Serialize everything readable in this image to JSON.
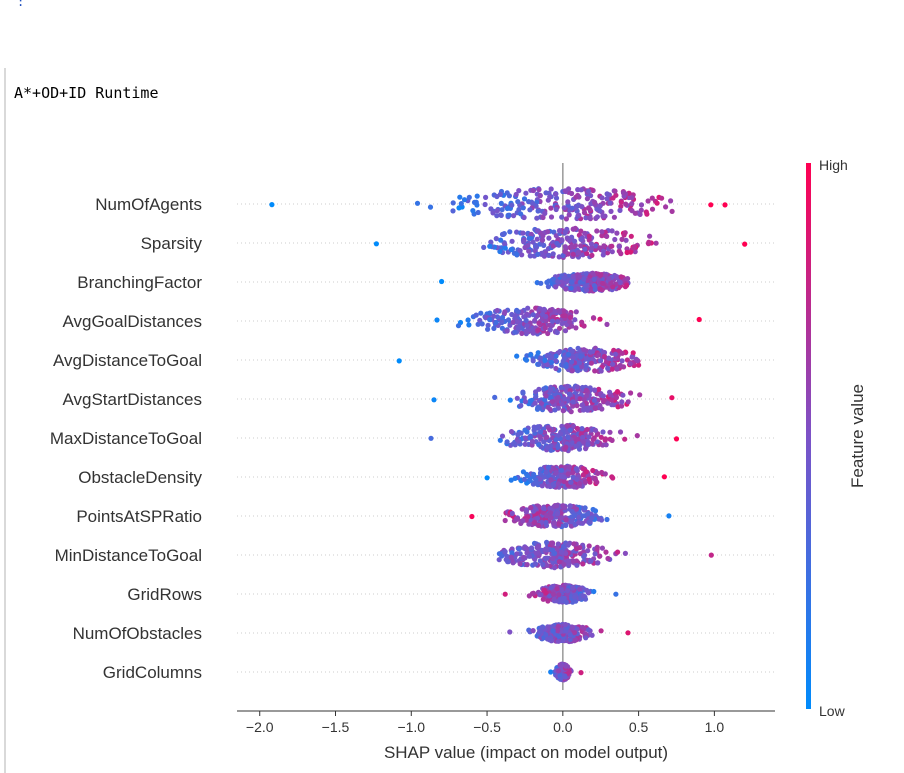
{
  "page": {
    "cell_marker": ":",
    "output_title": "A*+OD+ID Runtime"
  },
  "chart_data": {
    "type": "scatter",
    "subtype": "shap-beeswarm",
    "title": "",
    "xlabel": "SHAP value (impact on model output)",
    "ylabel": "",
    "xlim": [
      -2.15,
      1.4
    ],
    "xticks": [
      -2.0,
      -1.5,
      -1.0,
      -0.5,
      0.0,
      0.5,
      1.0
    ],
    "xtick_labels": [
      "−2.0",
      "−1.5",
      "−1.0",
      "−0.5",
      "0.0",
      "0.5",
      "1.0"
    ],
    "zero_line": 0.0,
    "grid": false,
    "colorbar": {
      "label": "Feature value",
      "high_label": "High",
      "low_label": "Low",
      "high_color": "#ff0052",
      "low_color": "#008bfb"
    },
    "features": [
      {
        "name": "NumOfAgents",
        "min": -1.92,
        "max": 1.07,
        "spread": 16,
        "center": 0.0,
        "color_trend": 1.0
      },
      {
        "name": "Sparsity",
        "min": -1.23,
        "max": 1.2,
        "spread": 15,
        "center": 0.0,
        "color_trend": 1.0
      },
      {
        "name": "BranchingFactor",
        "min": -0.8,
        "max": 0.43,
        "spread": 9,
        "center": 0.18,
        "color_trend": 0.6
      },
      {
        "name": "AvgGoalDistances",
        "min": -0.83,
        "max": 0.9,
        "spread": 13,
        "center": -0.2,
        "color_trend": 0.8
      },
      {
        "name": "AvgDistanceToGoal",
        "min": -1.08,
        "max": 0.5,
        "spread": 12,
        "center": 0.15,
        "color_trend": 0.8
      },
      {
        "name": "AvgStartDistances",
        "min": -0.85,
        "max": 0.72,
        "spread": 13,
        "center": 0.05,
        "color_trend": 0.7
      },
      {
        "name": "MaxDistanceToGoal",
        "min": -0.87,
        "max": 0.75,
        "spread": 13,
        "center": 0.0,
        "color_trend": 0.6
      },
      {
        "name": "ObstacleDensity",
        "min": -0.5,
        "max": 0.67,
        "spread": 11,
        "center": 0.0,
        "color_trend": 0.9
      },
      {
        "name": "PointsAtSPRatio",
        "min": -0.6,
        "max": 0.7,
        "spread": 11,
        "center": -0.05,
        "color_trend": -0.6
      },
      {
        "name": "MinDistanceToGoal",
        "min": -0.42,
        "max": 0.98,
        "spread": 13,
        "center": -0.05,
        "color_trend": 0.3
      },
      {
        "name": "GridRows",
        "min": -0.38,
        "max": 0.35,
        "spread": 9,
        "center": 0.0,
        "color_trend": -0.6
      },
      {
        "name": "NumOfObstacles",
        "min": -0.35,
        "max": 0.43,
        "spread": 9,
        "center": 0.0,
        "color_trend": 0.3
      },
      {
        "name": "GridColumns",
        "min": -0.08,
        "max": 0.12,
        "spread": 8,
        "center": 0.0,
        "color_trend": 0.5
      }
    ]
  }
}
